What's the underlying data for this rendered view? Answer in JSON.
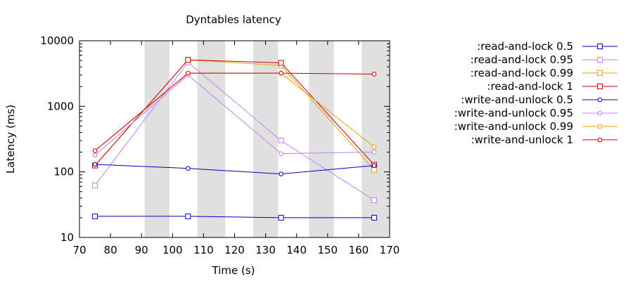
{
  "chart_data": {
    "type": "line",
    "title": "Dyntables latency",
    "xlabel": "Time (s)",
    "ylabel": "Latency (ms)",
    "xlim": [
      70,
      170
    ],
    "ylim": [
      10,
      10000
    ],
    "y_scale": "log",
    "x_ticks": [
      "70",
      "80",
      "90",
      "100",
      "110",
      "120",
      "130",
      "140",
      "150",
      "160",
      "170"
    ],
    "y_ticks": [
      "10",
      "100",
      "1000",
      "10000"
    ],
    "shaded_bands": [
      [
        91,
        99
      ],
      [
        108,
        117
      ],
      [
        126,
        134
      ],
      [
        144,
        152
      ],
      [
        161,
        170
      ]
    ],
    "x": [
      75,
      105,
      135,
      165
    ],
    "legend_position": "right",
    "series": [
      {
        "name": ":read-and-lock 0.5",
        "color": "#0000cc",
        "marker": "square",
        "values": [
          21,
          21,
          20,
          20
        ]
      },
      {
        "name": ":read-and-lock 0.95",
        "color": "#c080ff",
        "marker": "square",
        "values": [
          62,
          4700,
          300,
          37
        ]
      },
      {
        "name": ":read-and-lock 0.99",
        "color": "#f0a000",
        "marker": "square",
        "values": [
          125,
          5100,
          4200,
          108
        ]
      },
      {
        "name": ":read-and-lock 1",
        "color": "#cc0000",
        "marker": "square",
        "values": [
          125,
          5100,
          4600,
          128
        ]
      },
      {
        "name": ":write-and-unlock 0.5",
        "color": "#0000cc",
        "marker": "circle",
        "values": [
          130,
          113,
          93,
          125
        ]
      },
      {
        "name": ":write-and-unlock 0.95",
        "color": "#c080ff",
        "marker": "circle",
        "values": [
          180,
          3000,
          190,
          200
        ]
      },
      {
        "name": ":write-and-unlock 0.99",
        "color": "#f0a000",
        "marker": "circle",
        "values": [
          210,
          3200,
          3200,
          240
        ]
      },
      {
        "name": ":write-and-unlock 1",
        "color": "#cc0000",
        "marker": "circle",
        "values": [
          210,
          3200,
          3200,
          3100
        ]
      }
    ]
  }
}
